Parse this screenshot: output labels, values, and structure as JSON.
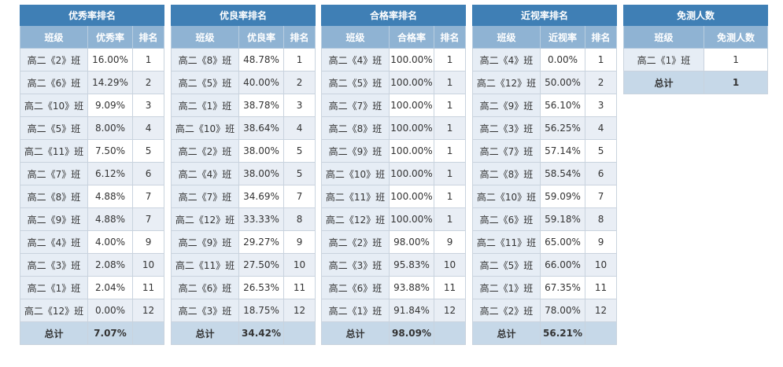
{
  "tables": [
    {
      "title": "优秀率排名",
      "headers": [
        "班级",
        "优秀率",
        "排名"
      ],
      "rows": [
        [
          "高二《2》班",
          "16.00%",
          "1"
        ],
        [
          "高二《6》班",
          "14.29%",
          "2"
        ],
        [
          "高二《10》班",
          "9.09%",
          "3"
        ],
        [
          "高二《5》班",
          "8.00%",
          "4"
        ],
        [
          "高二《11》班",
          "7.50%",
          "5"
        ],
        [
          "高二《7》班",
          "6.12%",
          "6"
        ],
        [
          "高二《8》班",
          "4.88%",
          "7"
        ],
        [
          "高二《9》班",
          "4.88%",
          "7"
        ],
        [
          "高二《4》班",
          "4.00%",
          "9"
        ],
        [
          "高二《3》班",
          "2.08%",
          "10"
        ],
        [
          "高二《1》班",
          "2.04%",
          "11"
        ],
        [
          "高二《12》班",
          "0.00%",
          "12"
        ]
      ],
      "total": [
        "总计",
        "7.07%",
        ""
      ]
    },
    {
      "title": "优良率排名",
      "headers": [
        "班级",
        "优良率",
        "排名"
      ],
      "rows": [
        [
          "高二《8》班",
          "48.78%",
          "1"
        ],
        [
          "高二《5》班",
          "40.00%",
          "2"
        ],
        [
          "高二《1》班",
          "38.78%",
          "3"
        ],
        [
          "高二《10》班",
          "38.64%",
          "4"
        ],
        [
          "高二《2》班",
          "38.00%",
          "5"
        ],
        [
          "高二《4》班",
          "38.00%",
          "5"
        ],
        [
          "高二《7》班",
          "34.69%",
          "7"
        ],
        [
          "高二《12》班",
          "33.33%",
          "8"
        ],
        [
          "高二《9》班",
          "29.27%",
          "9"
        ],
        [
          "高二《11》班",
          "27.50%",
          "10"
        ],
        [
          "高二《6》班",
          "26.53%",
          "11"
        ],
        [
          "高二《3》班",
          "18.75%",
          "12"
        ]
      ],
      "total": [
        "总计",
        "34.42%",
        ""
      ]
    },
    {
      "title": "合格率排名",
      "headers": [
        "班级",
        "合格率",
        "排名"
      ],
      "rows": [
        [
          "高二《4》班",
          "100.00%",
          "1"
        ],
        [
          "高二《5》班",
          "100.00%",
          "1"
        ],
        [
          "高二《7》班",
          "100.00%",
          "1"
        ],
        [
          "高二《8》班",
          "100.00%",
          "1"
        ],
        [
          "高二《9》班",
          "100.00%",
          "1"
        ],
        [
          "高二《10》班",
          "100.00%",
          "1"
        ],
        [
          "高二《11》班",
          "100.00%",
          "1"
        ],
        [
          "高二《12》班",
          "100.00%",
          "1"
        ],
        [
          "高二《2》班",
          "98.00%",
          "9"
        ],
        [
          "高二《3》班",
          "95.83%",
          "10"
        ],
        [
          "高二《6》班",
          "93.88%",
          "11"
        ],
        [
          "高二《1》班",
          "91.84%",
          "12"
        ]
      ],
      "total": [
        "总计",
        "98.09%",
        ""
      ]
    },
    {
      "title": "近视率排名",
      "headers": [
        "班级",
        "近视率",
        "排名"
      ],
      "rows": [
        [
          "高二《4》班",
          "0.00%",
          "1"
        ],
        [
          "高二《12》班",
          "50.00%",
          "2"
        ],
        [
          "高二《9》班",
          "56.10%",
          "3"
        ],
        [
          "高二《3》班",
          "56.25%",
          "4"
        ],
        [
          "高二《7》班",
          "57.14%",
          "5"
        ],
        [
          "高二《8》班",
          "58.54%",
          "6"
        ],
        [
          "高二《10》班",
          "59.09%",
          "7"
        ],
        [
          "高二《6》班",
          "59.18%",
          "8"
        ],
        [
          "高二《11》班",
          "65.00%",
          "9"
        ],
        [
          "高二《5》班",
          "66.00%",
          "10"
        ],
        [
          "高二《1》班",
          "67.35%",
          "11"
        ],
        [
          "高二《2》班",
          "78.00%",
          "12"
        ]
      ],
      "total": [
        "总计",
        "56.21%",
        ""
      ]
    },
    {
      "title": "免测人数",
      "headers": [
        "班级",
        "免测人数"
      ],
      "rows": [
        [
          "高二《1》班",
          "1"
        ]
      ],
      "total": [
        "总计",
        "1"
      ]
    }
  ]
}
